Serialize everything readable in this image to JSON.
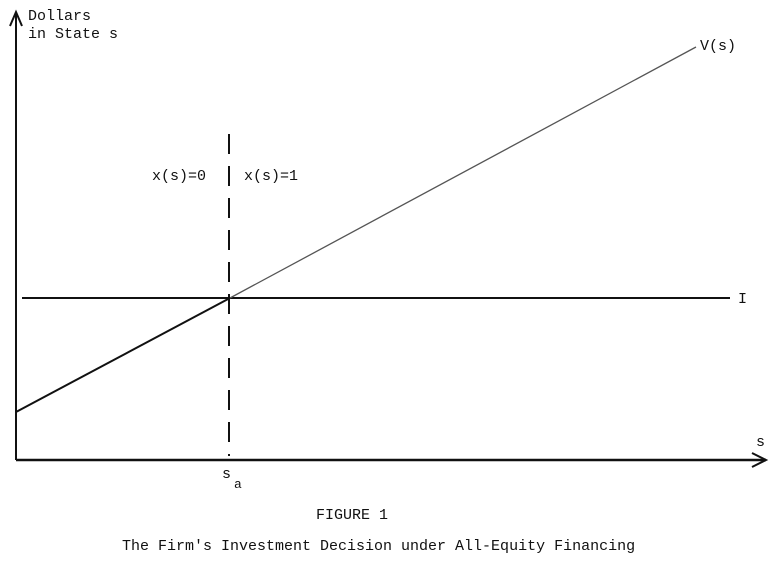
{
  "figure": {
    "number_label": "FIGURE 1",
    "caption": "The Firm's Investment Decision under All-Equity Financing"
  },
  "diagram": {
    "y_axis_label_line1": "Dollars",
    "y_axis_label_line2": "in State s",
    "x_axis_label": "s",
    "value_curve_label": "V(s)",
    "investment_line_label": "I",
    "threshold_base": "s",
    "threshold_subscript": "a",
    "left_region_label": "x(s)=0",
    "right_region_label": "x(s)=1"
  },
  "colors": {
    "ink": "#111111",
    "light_line": "#555555",
    "background": "#ffffff"
  }
}
